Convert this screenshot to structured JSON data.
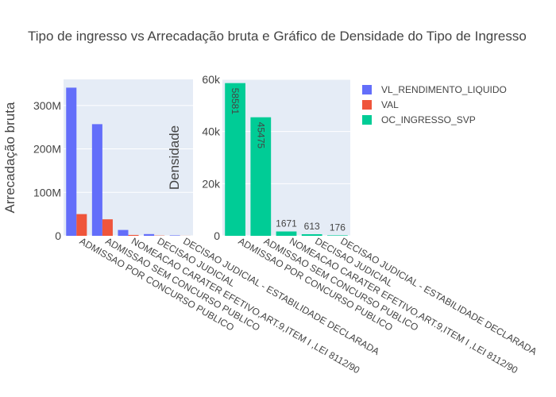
{
  "chart_data": {
    "title": "Tipo de ingresso vs Arrecadação bruta e Gráfico de Densidade do Tipo de Ingresso",
    "legend_position": "top-right",
    "legend": [
      {
        "name": "VL_RENDIMENTO_LIQUIDO",
        "color": "#636efa"
      },
      {
        "name": "VAL",
        "color": "#ef553b"
      },
      {
        "name": "OC_INGRESSO_SVP",
        "color": "#00cc96"
      }
    ],
    "background_color": "#e5ecf6",
    "grid": true,
    "charts": [
      {
        "type": "bar",
        "ylabel": "Arrecadação bruta",
        "ylim": [
          0,
          360000000
        ],
        "yticks": [
          {
            "value": 0,
            "label": "0"
          },
          {
            "value": 100000000,
            "label": "100M"
          },
          {
            "value": 200000000,
            "label": "200M"
          },
          {
            "value": 300000000,
            "label": "300M"
          }
        ],
        "categories": [
          "ADMISSAO POR CONCURSO PUBLICO",
          "ADMISSAO SEM CONCURSO PUBLICO",
          "NOMEACAO CARATER EFETIVO,ART.9,ITEM I ,LEI 8112/90",
          "DECISAO JUDICIAL",
          "DECISAO JUDICIAL - ESTABILIDADE DECLARADA"
        ],
        "series": [
          {
            "name": "VL_RENDIMENTO_LIQUIDO",
            "color": "#636efa",
            "values": [
              341000000,
              257000000,
              13500000,
              4000000,
              1000000
            ]
          },
          {
            "name": "VAL",
            "color": "#ef553b",
            "values": [
              50000000,
              38000000,
              2000000,
              600000,
              150000
            ]
          }
        ]
      },
      {
        "type": "bar",
        "ylabel": "Densidade",
        "ylim": [
          0,
          60000
        ],
        "yticks": [
          {
            "value": 0,
            "label": "0"
          },
          {
            "value": 20000,
            "label": "20k"
          },
          {
            "value": 40000,
            "label": "40k"
          },
          {
            "value": 60000,
            "label": "60k"
          }
        ],
        "categories": [
          "ADMISSAO POR CONCURSO PUBLICO",
          "ADMISSAO SEM CONCURSO PUBLICO",
          "NOMEACAO CARATER EFETIVO,ART.9,ITEM I ,LEI 8112/90",
          "DECISAO JUDICIAL",
          "DECISAO JUDICIAL - ESTABILIDADE DECLARADA"
        ],
        "series": [
          {
            "name": "OC_INGRESSO_SVP",
            "color": "#00cc96",
            "values": [
              58581,
              45475,
              1671,
              613,
              176
            ],
            "data_labels": [
              "58581",
              "45475",
              "1671",
              "613",
              "176"
            ]
          }
        ]
      }
    ]
  }
}
